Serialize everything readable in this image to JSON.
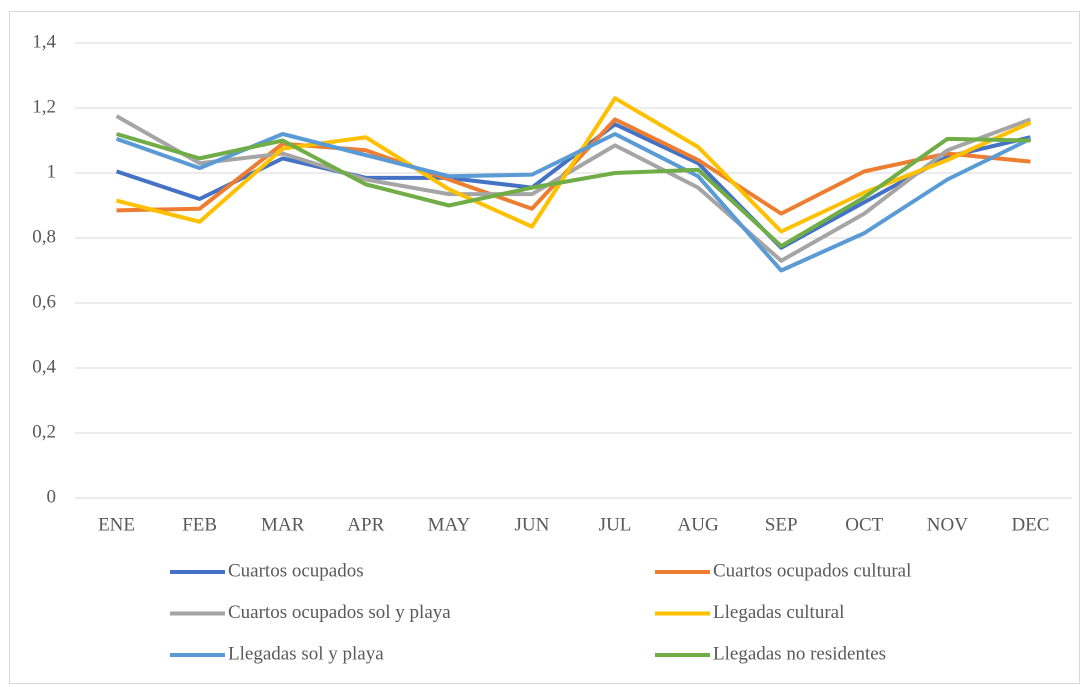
{
  "chart_data": {
    "type": "line",
    "categories": [
      "ENE",
      "FEB",
      "MAR",
      "APR",
      "MAY",
      "JUN",
      "JUL",
      "AUG",
      "SEP",
      "OCT",
      "NOV",
      "DEC"
    ],
    "series": [
      {
        "name": "Cuartos ocupados",
        "color": "#4472c4",
        "values": [
          1.005,
          0.92,
          1.045,
          0.985,
          0.985,
          0.955,
          1.15,
          1.03,
          0.77,
          0.91,
          1.05,
          1.11
        ]
      },
      {
        "name": "Cuartos ocupados cultural",
        "color": "#ed7d31",
        "values": [
          0.885,
          0.89,
          1.09,
          1.07,
          0.98,
          0.89,
          1.165,
          1.04,
          0.875,
          1.005,
          1.06,
          1.035
        ]
      },
      {
        "name": "Cuartos ocupados sol y playa",
        "color": "#a5a5a5",
        "values": [
          1.175,
          1.03,
          1.06,
          0.98,
          0.935,
          0.935,
          1.085,
          0.955,
          0.73,
          0.875,
          1.07,
          1.165
        ]
      },
      {
        "name": "Llegadas cultural",
        "color": "#ffc000",
        "values": [
          0.915,
          0.85,
          1.075,
          1.11,
          0.95,
          0.835,
          1.23,
          1.08,
          0.82,
          0.94,
          1.04,
          1.155
        ]
      },
      {
        "name": "Llegadas sol y playa",
        "color": "#5b9bd5",
        "values": [
          1.105,
          1.015,
          1.12,
          1.055,
          0.99,
          0.995,
          1.12,
          0.99,
          0.7,
          0.815,
          0.98,
          1.105
        ]
      },
      {
        "name": "Llegadas no residentes",
        "color": "#70ad47",
        "values": [
          1.12,
          1.045,
          1.1,
          0.965,
          0.9,
          0.955,
          1.0,
          1.01,
          0.775,
          0.925,
          1.105,
          1.1
        ]
      }
    ],
    "ylim": [
      0,
      1.4
    ],
    "yticks": [
      0,
      {
        "value": 0.2,
        "label": "0,2"
      },
      {
        "value": 0.4,
        "label": "0,4"
      },
      {
        "value": 0.6,
        "label": "0,6"
      },
      {
        "value": 0.8,
        "label": "0,8"
      },
      1,
      {
        "value": 1.2,
        "label": "1,2"
      },
      {
        "value": 1.4,
        "label": "1,4"
      }
    ],
    "grid": true
  }
}
